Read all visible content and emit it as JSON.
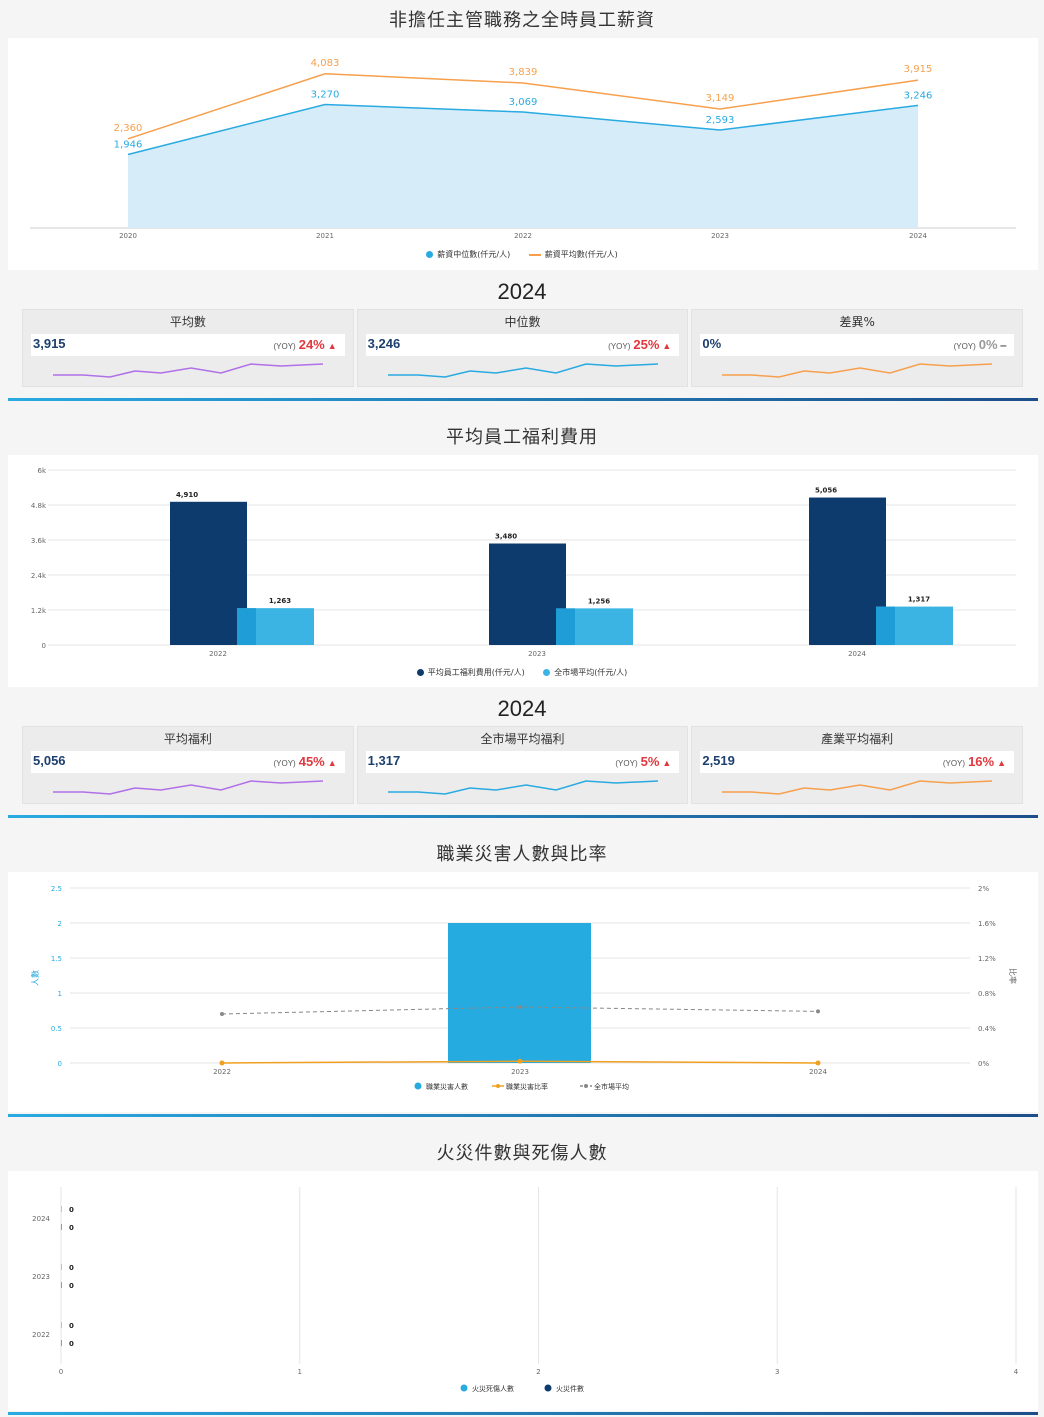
{
  "sections": {
    "salary": {
      "title": "非擔任主管職務之全時員工薪資",
      "legend": [
        "薪資中位數(仟元/人)",
        "薪資平均數(仟元/人)"
      ],
      "year_title": "2024",
      "cards": [
        {
          "title": "平均數",
          "value": "3,915",
          "yoy_label": "(YOY)",
          "yoy": "24%",
          "trend": "up",
          "spark_color": "#b070e8"
        },
        {
          "title": "中位數",
          "value": "3,246",
          "yoy_label": "(YOY)",
          "yoy": "25%",
          "trend": "up",
          "spark_color": "#29aae1"
        },
        {
          "title": "差異%",
          "value": "0%",
          "yoy_label": "(YOY)",
          "yoy": "0%",
          "trend": "flat",
          "spark_color": "#f6a04d"
        }
      ]
    },
    "welfare": {
      "title": "平均員工福利費用",
      "legend": [
        "平均員工福利費用(仟元/人)",
        "全市場平均(仟元/人)"
      ],
      "year_title": "2024",
      "cards": [
        {
          "title": "平均福利",
          "value": "5,056",
          "yoy_label": "(YOY)",
          "yoy": "45%",
          "trend": "up",
          "spark_color": "#b070e8"
        },
        {
          "title": "全市場平均福利",
          "value": "1,317",
          "yoy_label": "(YOY)",
          "yoy": "5%",
          "trend": "up",
          "spark_color": "#29aae1"
        },
        {
          "title": "產業平均福利",
          "value": "2,519",
          "yoy_label": "(YOY)",
          "yoy": "16%",
          "trend": "up",
          "spark_color": "#f6a04d"
        }
      ]
    },
    "injury": {
      "title": "職業災害人數與比率",
      "legend": [
        "職業災害人數",
        "職業災害比率",
        "全市場平均"
      ],
      "left_axis_title": "人數",
      "right_axis_title": "比率"
    },
    "fire": {
      "title": "火災件數與死傷人數",
      "legend": [
        "火災死傷人數",
        "火災件數"
      ]
    }
  },
  "chart_data": [
    {
      "type": "area",
      "x": [
        "2020",
        "2021",
        "2022",
        "2023",
        "2024"
      ],
      "series": [
        {
          "name": "薪資中位數(仟元/人)",
          "values": [
            1946,
            3270,
            3069,
            2593,
            3246
          ],
          "labels": [
            "1,946",
            "3,270",
            "3,069",
            "2,593",
            "3,246"
          ],
          "color": "#29aae1"
        },
        {
          "name": "薪資平均數(仟元/人)",
          "values": [
            2360,
            4083,
            3839,
            3149,
            3915
          ],
          "labels": [
            "2,360",
            "4,083",
            "3,839",
            "3,149",
            "3,915"
          ],
          "color": "#f6a04d"
        }
      ],
      "ylim": [
        0,
        4500
      ],
      "grid": false,
      "legend": "bottom"
    },
    {
      "type": "bar",
      "categories": [
        "2022",
        "2023",
        "2024"
      ],
      "series": [
        {
          "name": "平均員工福利費用(仟元/人)",
          "values": [
            4910,
            3480,
            5056
          ],
          "labels": [
            "4,910",
            "3,480",
            "5,056"
          ],
          "color": "#0d3b6e"
        },
        {
          "name": "全市場平均(仟元/人)",
          "values": [
            1263,
            1256,
            1317
          ],
          "labels": [
            "1,263",
            "1,256",
            "1,317"
          ],
          "color": "#3bb4e3"
        }
      ],
      "yticks": [
        "0",
        "1.2k",
        "2.4k",
        "3.6k",
        "4.8k",
        "6k"
      ],
      "ylim": [
        0,
        6000
      ],
      "grid": true,
      "legend": "bottom"
    },
    {
      "type": "bar",
      "categories": [
        "2022",
        "2023",
        "2024"
      ],
      "series": [
        {
          "name": "職業災害人數",
          "values": [
            0,
            2,
            0
          ],
          "color": "#25abe0",
          "axis": "left"
        },
        {
          "name": "職業災害比率",
          "values": [
            0,
            0.02,
            0
          ],
          "color": "#f0a020",
          "axis": "right",
          "style": "line"
        },
        {
          "name": "全市場平均",
          "values": [
            0.56,
            0.64,
            0.59
          ],
          "color": "#888888",
          "axis": "right",
          "style": "dashed"
        }
      ],
      "ylim": [
        0,
        2.5
      ],
      "yticks": [
        "0",
        "0.5",
        "1",
        "1.5",
        "2",
        "2.5"
      ],
      "y2lim": [
        0,
        2
      ],
      "y2ticks": [
        "0%",
        "0.4%",
        "0.8%",
        "1.2%",
        "1.6%",
        "2%"
      ],
      "ylabel": "人數",
      "y2label": "比率",
      "grid": true,
      "legend": "bottom"
    },
    {
      "type": "bar",
      "orientation": "horizontal",
      "categories": [
        "2024",
        "2023",
        "2022"
      ],
      "series": [
        {
          "name": "火災死傷人數",
          "values": [
            0,
            0,
            0
          ],
          "color": "#29aae1"
        },
        {
          "name": "火災件數",
          "values": [
            0,
            0,
            0
          ],
          "color": "#0d3b6e"
        }
      ],
      "xlim": [
        0,
        4
      ],
      "xticks": [
        "0",
        "1",
        "2",
        "3",
        "4"
      ],
      "grid": true,
      "legend": "bottom"
    }
  ]
}
